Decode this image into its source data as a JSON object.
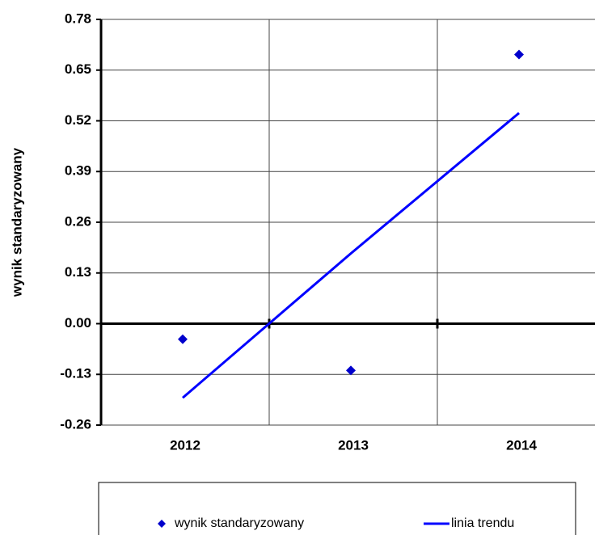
{
  "chart_data": {
    "type": "scatter",
    "y_label": "wynik standaryzowany",
    "categories": [
      "2012",
      "2013",
      "2014"
    ],
    "series": [
      {
        "name": "wynik standaryzowany",
        "type": "scatter",
        "color": "#0000cc",
        "values": [
          -0.04,
          -0.12,
          0.69
        ]
      },
      {
        "name": "linia trendu",
        "type": "line",
        "color": "#0000ff",
        "values": [
          -0.19,
          0.18,
          0.54
        ]
      }
    ],
    "ylim": [
      -0.26,
      0.78
    ],
    "yticks": [
      -0.26,
      -0.13,
      {
        "value": 0,
        "label": "0.00"
      },
      0.13,
      0.26,
      0.39,
      0.52,
      0.65,
      0.78
    ],
    "grid": true,
    "legend": "bottom"
  }
}
